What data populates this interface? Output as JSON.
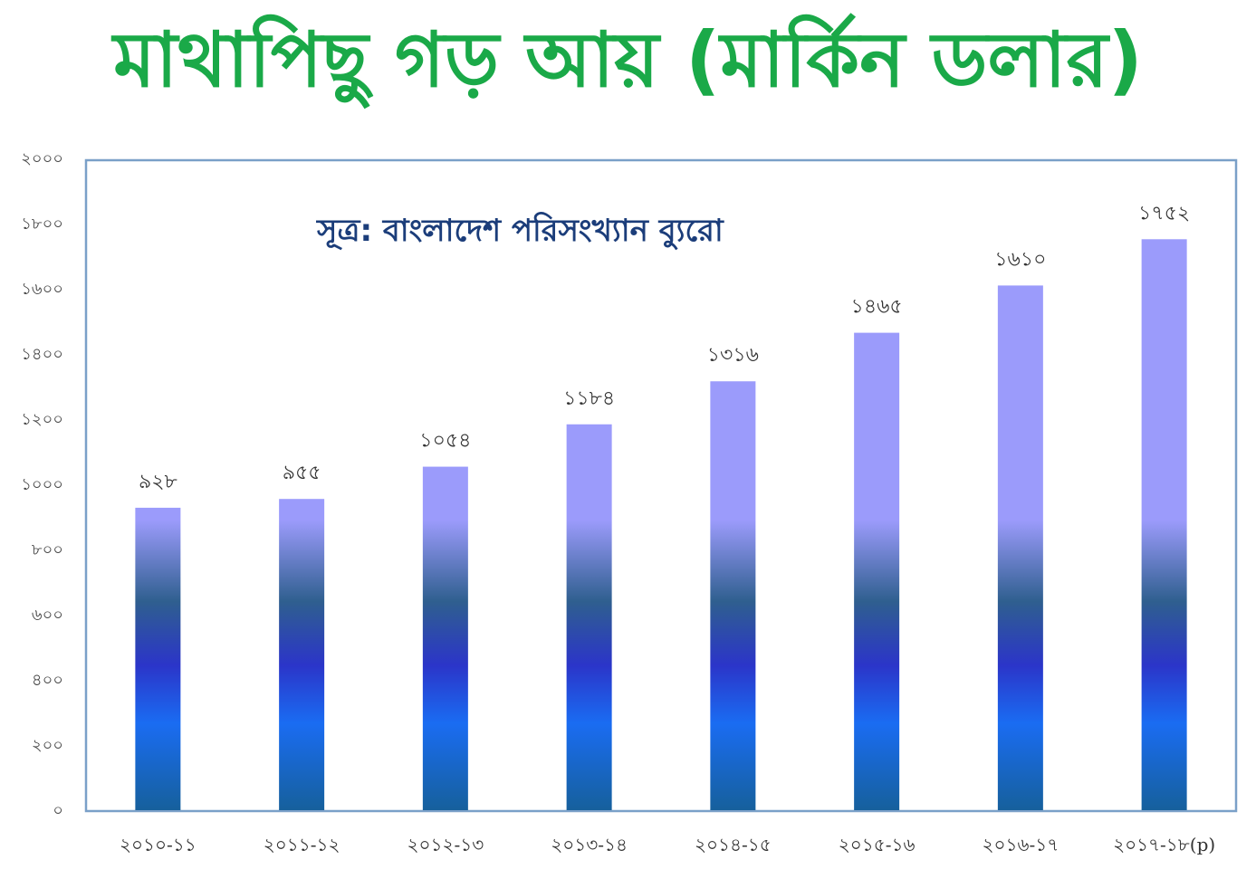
{
  "title": "মাথাপিছু গড় আয় (মার্কিন ডলার)",
  "colors": {
    "title": "#1aa948",
    "bar_top": "#9b9bfb",
    "bar_mid_dark": "#2f5f8f",
    "bar_mid_blue": "#2b35c9",
    "bar_bright": "#1a6cf2",
    "bar_bottom": "#16609c",
    "frame": "#7aa0c8",
    "source_text": "#1b3d7a"
  },
  "chart_data": {
    "type": "bar",
    "annotation": "সূত্র: বাংলাদেশ পরিসংখ্যান ব্যুরো",
    "categories": [
      "২০১০-১১",
      "২০১১-১২",
      "২০১২-১৩",
      "২০১৩-১৪",
      "২০১৪-১৫",
      "২০১৫-১৬",
      "২০১৬-১৭",
      "২০১৭-১৮(p)"
    ],
    "values": [
      928,
      955,
      1054,
      1184,
      1316,
      1465,
      1610,
      1752
    ],
    "value_labels": [
      "৯২৮",
      "৯৫৫",
      "১০৫৪",
      "১১৮৪",
      "১৩১৬",
      "১৪৬৫",
      "১৬১০",
      "১৭৫২"
    ],
    "y_ticks": [
      0,
      200,
      400,
      600,
      800,
      1000,
      1200,
      1400,
      1600,
      1800,
      2000
    ],
    "y_tick_labels": [
      "০",
      "২০০",
      "৪০০",
      "৬০০",
      "৮০০",
      "১০০০",
      "১২০০",
      "১৪০০",
      "১৬০০",
      "১৮০০",
      "২০০০"
    ],
    "ylim": [
      0,
      2000
    ],
    "grid": false,
    "legend": "none"
  }
}
